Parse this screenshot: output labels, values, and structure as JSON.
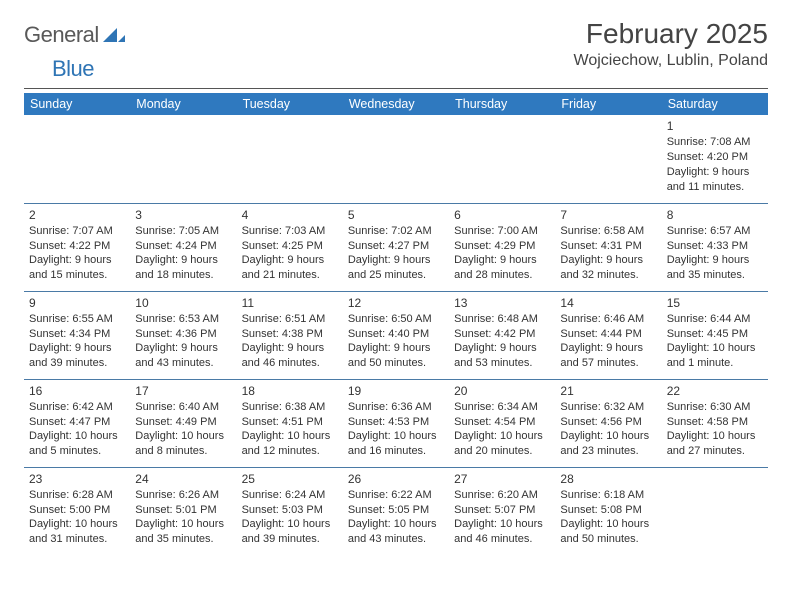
{
  "logo": {
    "general": "General",
    "blue": "Blue"
  },
  "header": {
    "title": "February 2025",
    "location": "Wojciechow, Lublin, Poland"
  },
  "colors": {
    "header_bg": "#2f79bf",
    "header_fg": "#ffffff",
    "rule": "#4a7aa6",
    "logo_gray": "#595959",
    "logo_blue": "#2f75b5"
  },
  "daynames": [
    "Sunday",
    "Monday",
    "Tuesday",
    "Wednesday",
    "Thursday",
    "Friday",
    "Saturday"
  ],
  "weeks": [
    [
      null,
      null,
      null,
      null,
      null,
      null,
      {
        "n": "1",
        "sr": "Sunrise: 7:08 AM",
        "ss": "Sunset: 4:20 PM",
        "dl": "Daylight: 9 hours and 11 minutes."
      }
    ],
    [
      {
        "n": "2",
        "sr": "Sunrise: 7:07 AM",
        "ss": "Sunset: 4:22 PM",
        "dl": "Daylight: 9 hours and 15 minutes."
      },
      {
        "n": "3",
        "sr": "Sunrise: 7:05 AM",
        "ss": "Sunset: 4:24 PM",
        "dl": "Daylight: 9 hours and 18 minutes."
      },
      {
        "n": "4",
        "sr": "Sunrise: 7:03 AM",
        "ss": "Sunset: 4:25 PM",
        "dl": "Daylight: 9 hours and 21 minutes."
      },
      {
        "n": "5",
        "sr": "Sunrise: 7:02 AM",
        "ss": "Sunset: 4:27 PM",
        "dl": "Daylight: 9 hours and 25 minutes."
      },
      {
        "n": "6",
        "sr": "Sunrise: 7:00 AM",
        "ss": "Sunset: 4:29 PM",
        "dl": "Daylight: 9 hours and 28 minutes."
      },
      {
        "n": "7",
        "sr": "Sunrise: 6:58 AM",
        "ss": "Sunset: 4:31 PM",
        "dl": "Daylight: 9 hours and 32 minutes."
      },
      {
        "n": "8",
        "sr": "Sunrise: 6:57 AM",
        "ss": "Sunset: 4:33 PM",
        "dl": "Daylight: 9 hours and 35 minutes."
      }
    ],
    [
      {
        "n": "9",
        "sr": "Sunrise: 6:55 AM",
        "ss": "Sunset: 4:34 PM",
        "dl": "Daylight: 9 hours and 39 minutes."
      },
      {
        "n": "10",
        "sr": "Sunrise: 6:53 AM",
        "ss": "Sunset: 4:36 PM",
        "dl": "Daylight: 9 hours and 43 minutes."
      },
      {
        "n": "11",
        "sr": "Sunrise: 6:51 AM",
        "ss": "Sunset: 4:38 PM",
        "dl": "Daylight: 9 hours and 46 minutes."
      },
      {
        "n": "12",
        "sr": "Sunrise: 6:50 AM",
        "ss": "Sunset: 4:40 PM",
        "dl": "Daylight: 9 hours and 50 minutes."
      },
      {
        "n": "13",
        "sr": "Sunrise: 6:48 AM",
        "ss": "Sunset: 4:42 PM",
        "dl": "Daylight: 9 hours and 53 minutes."
      },
      {
        "n": "14",
        "sr": "Sunrise: 6:46 AM",
        "ss": "Sunset: 4:44 PM",
        "dl": "Daylight: 9 hours and 57 minutes."
      },
      {
        "n": "15",
        "sr": "Sunrise: 6:44 AM",
        "ss": "Sunset: 4:45 PM",
        "dl": "Daylight: 10 hours and 1 minute."
      }
    ],
    [
      {
        "n": "16",
        "sr": "Sunrise: 6:42 AM",
        "ss": "Sunset: 4:47 PM",
        "dl": "Daylight: 10 hours and 5 minutes."
      },
      {
        "n": "17",
        "sr": "Sunrise: 6:40 AM",
        "ss": "Sunset: 4:49 PM",
        "dl": "Daylight: 10 hours and 8 minutes."
      },
      {
        "n": "18",
        "sr": "Sunrise: 6:38 AM",
        "ss": "Sunset: 4:51 PM",
        "dl": "Daylight: 10 hours and 12 minutes."
      },
      {
        "n": "19",
        "sr": "Sunrise: 6:36 AM",
        "ss": "Sunset: 4:53 PM",
        "dl": "Daylight: 10 hours and 16 minutes."
      },
      {
        "n": "20",
        "sr": "Sunrise: 6:34 AM",
        "ss": "Sunset: 4:54 PM",
        "dl": "Daylight: 10 hours and 20 minutes."
      },
      {
        "n": "21",
        "sr": "Sunrise: 6:32 AM",
        "ss": "Sunset: 4:56 PM",
        "dl": "Daylight: 10 hours and 23 minutes."
      },
      {
        "n": "22",
        "sr": "Sunrise: 6:30 AM",
        "ss": "Sunset: 4:58 PM",
        "dl": "Daylight: 10 hours and 27 minutes."
      }
    ],
    [
      {
        "n": "23",
        "sr": "Sunrise: 6:28 AM",
        "ss": "Sunset: 5:00 PM",
        "dl": "Daylight: 10 hours and 31 minutes."
      },
      {
        "n": "24",
        "sr": "Sunrise: 6:26 AM",
        "ss": "Sunset: 5:01 PM",
        "dl": "Daylight: 10 hours and 35 minutes."
      },
      {
        "n": "25",
        "sr": "Sunrise: 6:24 AM",
        "ss": "Sunset: 5:03 PM",
        "dl": "Daylight: 10 hours and 39 minutes."
      },
      {
        "n": "26",
        "sr": "Sunrise: 6:22 AM",
        "ss": "Sunset: 5:05 PM",
        "dl": "Daylight: 10 hours and 43 minutes."
      },
      {
        "n": "27",
        "sr": "Sunrise: 6:20 AM",
        "ss": "Sunset: 5:07 PM",
        "dl": "Daylight: 10 hours and 46 minutes."
      },
      {
        "n": "28",
        "sr": "Sunrise: 6:18 AM",
        "ss": "Sunset: 5:08 PM",
        "dl": "Daylight: 10 hours and 50 minutes."
      },
      null
    ]
  ]
}
